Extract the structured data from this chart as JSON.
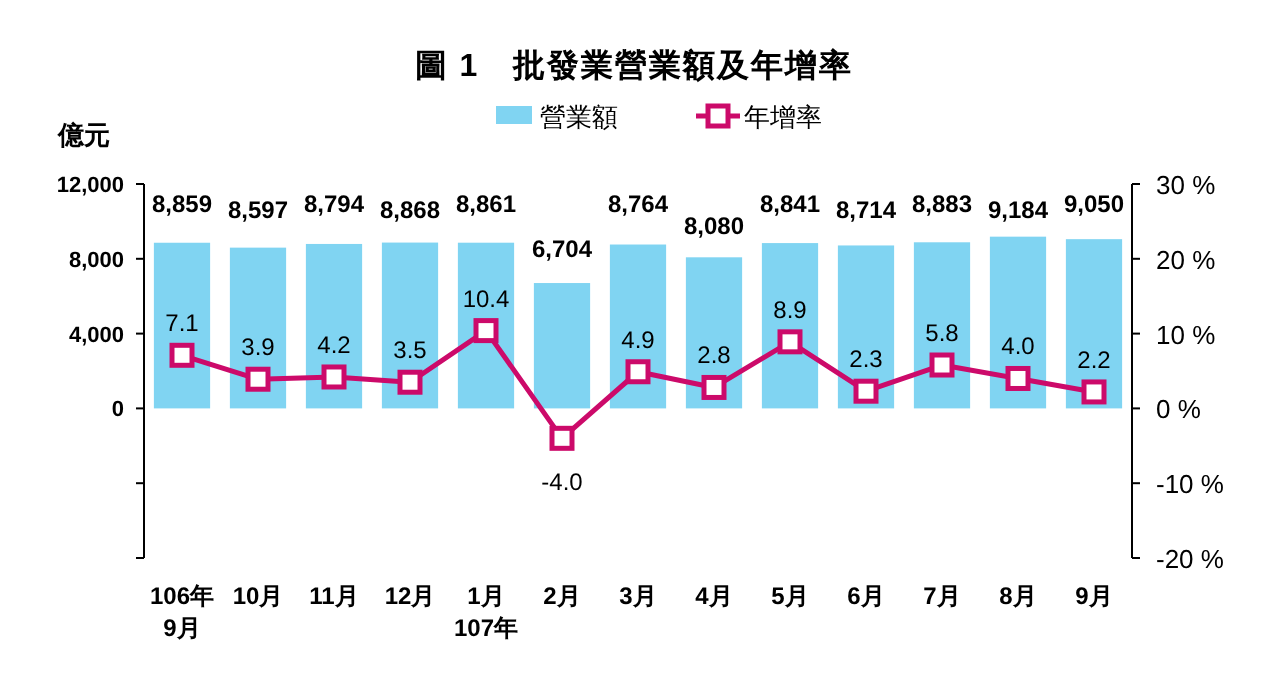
{
  "chart_data": {
    "type": "bar",
    "title": "圖 1　批發業營業額及年增率",
    "ylabel": "億元",
    "categories": [
      "106年\n9月",
      "10月",
      "11月",
      "12月",
      "1月\n107年",
      "2月",
      "3月",
      "4月",
      "5月",
      "6月",
      "7月",
      "8月",
      "9月"
    ],
    "series": [
      {
        "name": "營業額",
        "color": "#80d4f2",
        "values": [
          8859,
          8597,
          8794,
          8868,
          8861,
          6704,
          8764,
          8080,
          8841,
          8714,
          8883,
          9184,
          9050
        ],
        "value_labels": [
          "8,859",
          "8,597",
          "8,794",
          "8,868",
          "8,861",
          "6,704",
          "8,764",
          "8,080",
          "8,841",
          "8,714",
          "8,883",
          "9,184",
          "9,050"
        ]
      },
      {
        "name": "年增率",
        "type": "line",
        "axis": "y2",
        "color": "#cc0a6a",
        "marker": "square",
        "values": [
          7.1,
          3.9,
          4.2,
          3.5,
          10.4,
          -4.0,
          4.9,
          2.8,
          8.9,
          2.3,
          5.8,
          4.0,
          2.2
        ],
        "value_labels": [
          "7.1",
          "3.9",
          "4.2",
          "3.5",
          "10.4",
          "-4.0",
          "4.9",
          "2.8",
          "8.9",
          "2.3",
          "5.8",
          "4.0",
          "2.2"
        ]
      }
    ],
    "ylim": [
      -8000,
      12000
    ],
    "yticks": [
      {
        "value": -8000,
        "label": null
      },
      {
        "value": -4000,
        "label": null
      },
      {
        "value": 0,
        "label": "0"
      },
      {
        "value": 4000,
        "label": "4,000"
      },
      {
        "value": 8000,
        "label": "8,000"
      },
      {
        "value": 12000,
        "label": "12,000"
      }
    ],
    "y2lim": [
      -20,
      30
    ],
    "y2ticks": [
      {
        "value": -20,
        "label": "-20 %"
      },
      {
        "value": -10,
        "label": "-10 %"
      },
      {
        "value": 0,
        "label": "0 %"
      },
      {
        "value": 10,
        "label": "10 %"
      },
      {
        "value": 20,
        "label": "20 %"
      },
      {
        "value": 30,
        "label": "30 %"
      }
    ],
    "legend": "top",
    "grid": false
  }
}
